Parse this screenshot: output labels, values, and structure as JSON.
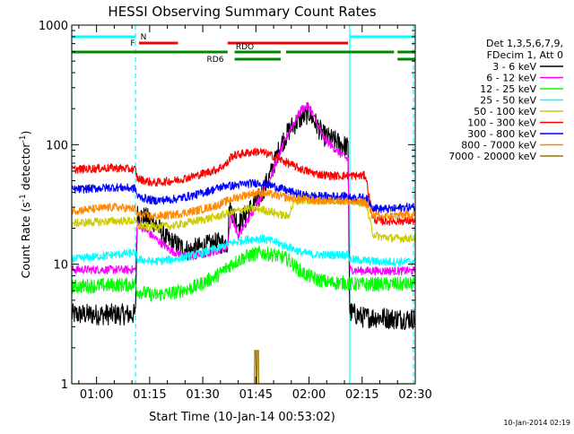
{
  "chart_data": {
    "type": "line",
    "title": "HESSI Observing Summary Count Rates",
    "xlabel": "Start Time (10-Jan-14 00:53:02)",
    "ylabel_main": "Count Rate (s",
    "ylabel_sup1": "-1",
    "ylabel_mid": " detector",
    "ylabel_sup2": "-1",
    "ylabel_end": ")",
    "y_scale": "log",
    "ylim": [
      1,
      1000
    ],
    "xlim_min": [
      53,
      150
    ],
    "x_ticks": [
      {
        "min": 60,
        "label": "01:00"
      },
      {
        "min": 75,
        "label": "01:15"
      },
      {
        "min": 90,
        "label": "01:30"
      },
      {
        "min": 105,
        "label": "01:45"
      },
      {
        "min": 120,
        "label": "02:00"
      },
      {
        "min": 135,
        "label": "02:15"
      },
      {
        "min": 150,
        "label": "02:30"
      }
    ],
    "y_ticks": [
      {
        "value": 1,
        "label": "1"
      },
      {
        "value": 10,
        "label": "10"
      },
      {
        "value": 100,
        "label": "100"
      },
      {
        "value": 1000,
        "label": "1000"
      }
    ],
    "legend_header": [
      "Det 1,3,5,6,7,9,",
      "FDecim 1, Att 0"
    ],
    "legend_placement": "right",
    "series": [
      {
        "name": "3 - 6 keV",
        "color": "#000000",
        "points": [
          [
            53,
            3.8
          ],
          [
            71,
            3.8
          ],
          [
            71.5,
            26
          ],
          [
            76,
            23
          ],
          [
            80,
            16
          ],
          [
            86,
            13
          ],
          [
            90,
            14
          ],
          [
            94,
            15
          ],
          [
            97,
            15
          ],
          [
            97.5,
            30
          ],
          [
            100,
            22
          ],
          [
            103,
            28
          ],
          [
            106,
            36
          ],
          [
            109,
            55
          ],
          [
            112,
            100
          ],
          [
            115,
            140
          ],
          [
            118,
            170
          ],
          [
            120,
            185
          ],
          [
            124,
            120
          ],
          [
            128,
            105
          ],
          [
            131,
            95
          ],
          [
            131.5,
            4
          ],
          [
            135,
            3.6
          ],
          [
            140,
            3.6
          ],
          [
            144,
            3.5
          ],
          [
            147,
            3.5
          ],
          [
            150,
            3.5
          ]
        ]
      },
      {
        "name": "6 - 12 keV",
        "color": "#ff00ff",
        "points": [
          [
            53,
            9
          ],
          [
            71,
            9
          ],
          [
            71.5,
            22
          ],
          [
            76,
            17
          ],
          [
            81,
            13
          ],
          [
            86,
            11.5
          ],
          [
            90,
            12
          ],
          [
            94,
            13
          ],
          [
            97,
            14
          ],
          [
            98,
            27
          ],
          [
            100,
            17
          ],
          [
            103,
            24
          ],
          [
            106,
            35
          ],
          [
            109,
            52
          ],
          [
            112,
            90
          ],
          [
            115,
            140
          ],
          [
            118,
            200
          ],
          [
            120,
            210
          ],
          [
            124,
            115
          ],
          [
            128,
            88
          ],
          [
            131,
            75
          ],
          [
            131.5,
            9
          ],
          [
            135,
            8.8
          ],
          [
            140,
            8.8
          ],
          [
            144,
            8.8
          ],
          [
            147,
            8.8
          ],
          [
            150,
            8.8
          ]
        ]
      },
      {
        "name": "12 - 25 keV",
        "color": "#00ff00",
        "points": [
          [
            53,
            6.5
          ],
          [
            71,
            6.8
          ],
          [
            71.5,
            6
          ],
          [
            76,
            5.5
          ],
          [
            82,
            5.8
          ],
          [
            88,
            6.5
          ],
          [
            94,
            8
          ],
          [
            98,
            10
          ],
          [
            102,
            11.5
          ],
          [
            106,
            12.5
          ],
          [
            110,
            12
          ],
          [
            114,
            11
          ],
          [
            118,
            8.5
          ],
          [
            122,
            7.5
          ],
          [
            126,
            7
          ],
          [
            131,
            7
          ],
          [
            131.5,
            6.8
          ],
          [
            140,
            6.8
          ],
          [
            147,
            6.8
          ],
          [
            150,
            6.8
          ]
        ]
      },
      {
        "name": "25 - 50 keV",
        "color": "#00ffff",
        "points": [
          [
            53,
            11
          ],
          [
            65,
            12
          ],
          [
            71,
            12.5
          ],
          [
            71.5,
            11
          ],
          [
            76,
            10.5
          ],
          [
            82,
            11
          ],
          [
            88,
            12
          ],
          [
            94,
            13.5
          ],
          [
            98,
            15
          ],
          [
            102,
            16
          ],
          [
            106,
            16.5
          ],
          [
            110,
            15.5
          ],
          [
            114,
            14
          ],
          [
            118,
            12.5
          ],
          [
            122,
            12
          ],
          [
            126,
            12
          ],
          [
            131,
            12
          ],
          [
            131.5,
            11
          ],
          [
            140,
            10.5
          ],
          [
            147,
            10.5
          ],
          [
            150,
            10.5
          ]
        ]
      },
      {
        "name": "50 - 100 keV",
        "color": "#cccc00",
        "points": [
          [
            53,
            22
          ],
          [
            65,
            23
          ],
          [
            71,
            23
          ],
          [
            71.5,
            21
          ],
          [
            76,
            20.5
          ],
          [
            82,
            21
          ],
          [
            88,
            23
          ],
          [
            94,
            25
          ],
          [
            98,
            27
          ],
          [
            102,
            29
          ],
          [
            106,
            29
          ],
          [
            110,
            27
          ],
          [
            114,
            25
          ],
          [
            116,
            34
          ],
          [
            120,
            34
          ],
          [
            126,
            34
          ],
          [
            131,
            34
          ],
          [
            131.5,
            33
          ],
          [
            136,
            33
          ],
          [
            138,
            18
          ],
          [
            140,
            17
          ],
          [
            144,
            16.5
          ],
          [
            147,
            16.5
          ],
          [
            150,
            16.5
          ]
        ]
      },
      {
        "name": "100 - 300 keV",
        "color": "#ff0000",
        "points": [
          [
            53,
            62
          ],
          [
            65,
            64
          ],
          [
            71,
            62
          ],
          [
            71.5,
            52
          ],
          [
            76,
            48
          ],
          [
            82,
            50
          ],
          [
            88,
            55
          ],
          [
            94,
            62
          ],
          [
            97,
            70
          ],
          [
            98,
            80
          ],
          [
            102,
            85
          ],
          [
            106,
            88
          ],
          [
            110,
            80
          ],
          [
            114,
            70
          ],
          [
            118,
            62
          ],
          [
            122,
            57
          ],
          [
            126,
            55
          ],
          [
            131,
            55
          ],
          [
            131.5,
            55
          ],
          [
            136,
            55
          ],
          [
            138,
            24
          ],
          [
            140,
            23
          ],
          [
            144,
            23
          ],
          [
            147,
            23
          ],
          [
            150,
            23
          ]
        ]
      },
      {
        "name": "300 - 800 keV",
        "color": "#0000ff",
        "points": [
          [
            53,
            42
          ],
          [
            65,
            44
          ],
          [
            71,
            43
          ],
          [
            71.5,
            37
          ],
          [
            76,
            34
          ],
          [
            82,
            35
          ],
          [
            88,
            38
          ],
          [
            94,
            43
          ],
          [
            97,
            46
          ],
          [
            98,
            45
          ],
          [
            102,
            47
          ],
          [
            106,
            48
          ],
          [
            110,
            45
          ],
          [
            114,
            41
          ],
          [
            118,
            38
          ],
          [
            122,
            37
          ],
          [
            126,
            37
          ],
          [
            131,
            37
          ],
          [
            131.5,
            36
          ],
          [
            136,
            36
          ],
          [
            138,
            30
          ],
          [
            140,
            29
          ],
          [
            144,
            29
          ],
          [
            147,
            30
          ],
          [
            150,
            30
          ]
        ]
      },
      {
        "name": "800 - 7000 keV",
        "color": "#ff8800",
        "points": [
          [
            53,
            28
          ],
          [
            65,
            30
          ],
          [
            71,
            29
          ],
          [
            71.5,
            26
          ],
          [
            76,
            25
          ],
          [
            82,
            26
          ],
          [
            88,
            28
          ],
          [
            94,
            31
          ],
          [
            98,
            35
          ],
          [
            102,
            38
          ],
          [
            106,
            40
          ],
          [
            110,
            38
          ],
          [
            114,
            36
          ],
          [
            118,
            35
          ],
          [
            122,
            34
          ],
          [
            126,
            34
          ],
          [
            131,
            34
          ],
          [
            131.5,
            33
          ],
          [
            136,
            33
          ],
          [
            138,
            26
          ],
          [
            140,
            25
          ],
          [
            144,
            25.5
          ],
          [
            147,
            26
          ],
          [
            150,
            26
          ]
        ]
      },
      {
        "name": "7000 - 20000 keV",
        "color": "#997700",
        "points": [
          [
            53,
            1
          ],
          [
            104.6,
            1
          ],
          [
            104.7,
            1.9
          ],
          [
            105.0,
            1.9
          ],
          [
            105.1,
            1
          ],
          [
            105.3,
            1
          ],
          [
            105.4,
            1.9
          ],
          [
            105.7,
            1.9
          ],
          [
            105.8,
            1
          ],
          [
            150,
            1
          ]
        ]
      }
    ],
    "flag_bars": [
      {
        "label": "N",
        "color": "#00ffff",
        "level": 0,
        "segments": [
          [
            53,
            71
          ],
          [
            131.5,
            150
          ]
        ]
      },
      {
        "label": "F",
        "color": "#ff0000",
        "level": 1,
        "segments": [
          [
            72,
            83
          ],
          [
            97,
            131
          ]
        ]
      },
      {
        "label": "RDO",
        "color": "#008800",
        "level": 2,
        "segments": [
          [
            53,
            97
          ],
          [
            99,
            112
          ],
          [
            113.5,
            144
          ],
          [
            145,
            150
          ]
        ]
      },
      {
        "label": "RD6",
        "color": "#008800",
        "level": 3,
        "segments": [
          [
            99,
            112
          ],
          [
            145,
            150
          ]
        ]
      }
    ],
    "vertical_markers": [
      {
        "min": 53,
        "color": "#00ffff",
        "style": "solid"
      },
      {
        "min": 71,
        "color": "#00ffff",
        "style": "dashed"
      },
      {
        "min": 131.5,
        "color": "#00ffff",
        "style": "solid"
      },
      {
        "min": 149.5,
        "color": "#00ffff",
        "style": "dashed"
      }
    ],
    "footer_date": "10-Jan-2014 02:19"
  }
}
